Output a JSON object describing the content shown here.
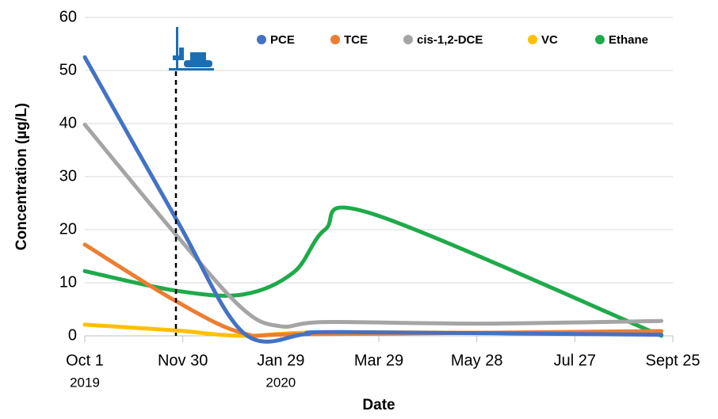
{
  "chart_data": {
    "type": "line",
    "xlabel": "Date",
    "ylabel": "Concentration (µg/L)",
    "xlim": [
      "2019-10-01",
      "2020-09-25"
    ],
    "xticks": [
      {
        "value": "2019-10-01",
        "label": "Oct 1"
      },
      {
        "value": "2019-11-30",
        "label": "Nov 30"
      },
      {
        "value": "2020-01-29",
        "label": "Jan 29"
      },
      {
        "value": "2020-03-29",
        "label": "Mar 29"
      },
      {
        "value": "2020-05-28",
        "label": "May 28"
      },
      {
        "value": "2020-07-27",
        "label": "Jul 27"
      },
      {
        "value": "2020-09-25",
        "label": "Sept 25"
      }
    ],
    "xtick_years": [
      {
        "value": "2019-10-01",
        "label": "2019"
      },
      {
        "value": "2020-01-29",
        "label": "2020"
      }
    ],
    "ylim": [
      0,
      60
    ],
    "yticks": [
      0,
      10,
      20,
      30,
      40,
      50,
      60
    ],
    "grid": true,
    "legend": "top",
    "series": [
      {
        "name": "PCE",
        "color": "#4472c4",
        "x": [
          "2019-10-01",
          "2019-11-26",
          "2020-01-06",
          "2020-02-13",
          "2020-03-05",
          "2020-09-18"
        ],
        "values": [
          52.5,
          22,
          0.6,
          0.3,
          0.7,
          0.2
        ]
      },
      {
        "name": "TCE",
        "color": "#ed7d31",
        "x": [
          "2019-10-01",
          "2019-11-26",
          "2020-01-06",
          "2020-02-13",
          "2020-09-18"
        ],
        "values": [
          17.2,
          6.5,
          0.5,
          0.3,
          0.9
        ]
      },
      {
        "name": "cis-1,2-DCE",
        "color": "#a5a5a5",
        "x": [
          "2019-10-01",
          "2019-11-26",
          "2020-01-06",
          "2020-01-29",
          "2020-02-25",
          "2020-05-28",
          "2020-09-18"
        ],
        "values": [
          39.8,
          19,
          5,
          1.8,
          2.6,
          2.3,
          2.8
        ]
      },
      {
        "name": "VC",
        "color": "#ffc000",
        "x": [
          "2019-10-01",
          "2019-11-26",
          "2020-01-06",
          "2020-03-05",
          "2020-09-18"
        ],
        "values": [
          2.1,
          1.0,
          0,
          0.7,
          0.3
        ]
      },
      {
        "name": "Ethane",
        "color": "#1faa4a",
        "x": [
          "2019-10-01",
          "2019-11-26",
          "2020-01-06",
          "2020-02-06",
          "2020-02-25",
          "2020-03-25",
          "2020-09-18"
        ],
        "values": [
          12.2,
          8.5,
          7.8,
          12,
          20,
          23,
          0
        ]
      }
    ]
  }
}
